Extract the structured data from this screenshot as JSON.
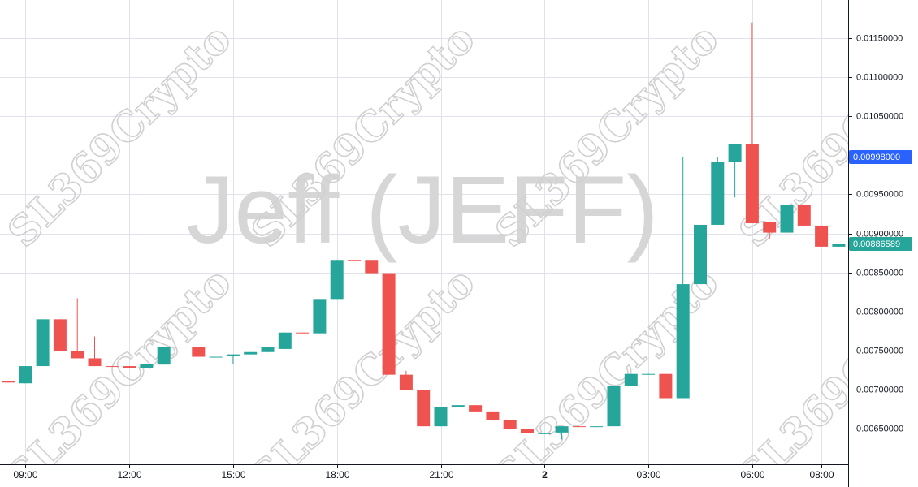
{
  "chart_data": {
    "type": "candlestick",
    "title": "Jeff (JEFF)",
    "watermark": "SL369Crypto",
    "categories": [
      null,
      "09:00",
      null,
      null,
      null,
      null,
      null,
      "12:00",
      null,
      null,
      null,
      null,
      null,
      "15:00",
      null,
      null,
      null,
      null,
      null,
      "18:00",
      null,
      null,
      null,
      null,
      null,
      "21:00",
      null,
      null,
      null,
      null,
      null,
      "2",
      null,
      null,
      null,
      null,
      null,
      "03:00",
      null,
      null,
      null,
      null,
      null,
      "06:00",
      null,
      null,
      null,
      "08:00",
      null
    ],
    "open": [
      0.00711,
      0.00708,
      0.0073,
      0.0079,
      0.00749,
      0.0074,
      0.0073,
      0.0073,
      0.00728,
      0.00732,
      0.00754,
      0.00754,
      0.00741,
      0.00743,
      0.00745,
      0.00748,
      0.00752,
      0.00773,
      0.00772,
      0.00816,
      0.00866,
      0.00866,
      0.00849,
      0.00719,
      0.00699,
      0.00653,
      0.00678,
      0.0068,
      0.00672,
      0.00661,
      0.0065,
      0.00643,
      0.00645,
      0.00653,
      0.00652,
      0.00653,
      0.00705,
      0.00719,
      0.0072,
      0.00689,
      0.00835,
      0.00911,
      0.00992,
      0.01014,
      0.00915,
      0.00901,
      0.00936,
      0.0091,
      0.00883
    ],
    "high": [
      0.00711,
      0.0073,
      0.0079,
      0.0079,
      0.00817,
      0.00768,
      0.0073,
      0.0073,
      0.00733,
      0.00754,
      0.00755,
      0.00754,
      0.00742,
      0.00745,
      0.00748,
      0.00754,
      0.00773,
      0.00773,
      0.00816,
      0.00866,
      0.00866,
      0.00866,
      0.00849,
      0.00724,
      0.00699,
      0.00678,
      0.0068,
      0.0068,
      0.00672,
      0.00661,
      0.0065,
      0.00644,
      0.00653,
      0.00653,
      0.00653,
      0.00705,
      0.0072,
      0.0072,
      0.0072,
      0.00998,
      0.00911,
      0.00998,
      0.01015,
      0.0117,
      0.00915,
      0.00936,
      0.00936,
      0.0091,
      0.00887
    ],
    "low": [
      0.00709,
      0.00708,
      0.0073,
      0.00749,
      0.0074,
      0.0073,
      0.00729,
      0.00728,
      0.00728,
      0.00732,
      0.00754,
      0.00742,
      0.00741,
      0.00733,
      0.00745,
      0.00748,
      0.00752,
      0.00772,
      0.00772,
      0.00816,
      0.00865,
      0.00849,
      0.00719,
      0.00699,
      0.00653,
      0.00653,
      0.00678,
      0.00672,
      0.00661,
      0.0065,
      0.00644,
      0.00643,
      0.00636,
      0.00652,
      0.00652,
      0.00653,
      0.00705,
      0.00719,
      0.00689,
      0.00689,
      0.00835,
      0.00911,
      0.00946,
      0.00913,
      0.00893,
      0.00901,
      0.0091,
      0.00883,
      0.00883
    ],
    "close": [
      0.00709,
      0.0073,
      0.0079,
      0.00749,
      0.0074,
      0.0073,
      0.00729,
      0.00728,
      0.00733,
      0.00754,
      0.00755,
      0.00742,
      0.00742,
      0.00745,
      0.00748,
      0.00754,
      0.00773,
      0.00772,
      0.00816,
      0.00866,
      0.00865,
      0.00849,
      0.00719,
      0.00699,
      0.00653,
      0.00678,
      0.0068,
      0.00672,
      0.00661,
      0.0065,
      0.00644,
      0.00644,
      0.00653,
      0.00652,
      0.00653,
      0.00705,
      0.0072,
      0.0072,
      0.00689,
      0.00835,
      0.00911,
      0.00992,
      0.01014,
      0.00913,
      0.00901,
      0.00936,
      0.0091,
      0.00883,
      0.00887
    ],
    "up_color": "#26a69a",
    "down_color": "#ef5350",
    "ylim": [
      0.006043,
      0.011989
    ],
    "yticks": [
      {
        "value": 0.0065,
        "label": "0.00650000"
      },
      {
        "value": 0.007,
        "label": "0.00700000"
      },
      {
        "value": 0.0075,
        "label": "0.00750000"
      },
      {
        "value": 0.008,
        "label": "0.00800000"
      },
      {
        "value": 0.0085,
        "label": "0.00850000"
      },
      {
        "value": 0.009,
        "label": "0.00900000"
      },
      {
        "value": 0.0095,
        "label": "0.00950000"
      },
      {
        "value": 0.0105,
        "label": "0.01050000"
      },
      {
        "value": 0.011,
        "label": "0.01100000"
      },
      {
        "value": 0.0115,
        "label": "0.01150000"
      }
    ],
    "grid": true,
    "price_lines": [
      {
        "value": 0.00998,
        "label": "0.00998000",
        "color": "#2962ff",
        "style": "solid"
      },
      {
        "value": 0.00886589,
        "label": "0.00886589",
        "color": "#26a69a",
        "style": "dotted"
      }
    ]
  }
}
